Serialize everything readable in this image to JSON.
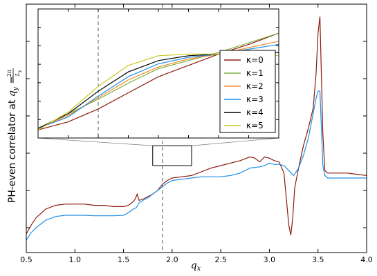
{
  "chart_data": [
    {
      "type": "line",
      "title": "",
      "xlabel": "q_x",
      "ylabel": "PH-even correlator at q_y = 2π/L_y",
      "ylabel_parts": {
        "text": "PH-even correlator at",
        "qy": "q",
        "qy_sub": "y",
        "eq": "=",
        "num": "2π",
        "den": "L",
        "den_sub": "y"
      },
      "xlim": [
        0.5,
        4.0
      ],
      "ylim": [
        0,
        1
      ],
      "xticks": [
        "0.5",
        "1.0",
        "1.5",
        "2.0",
        "2.5",
        "3.0",
        "3.5",
        "4.0"
      ],
      "xtick_values": [
        0.5,
        1.0,
        1.5,
        2.0,
        2.5,
        3.0,
        3.5,
        4.0
      ],
      "ytick_values": [
        0.1,
        0.25,
        0.4,
        0.55,
        0.7,
        0.85
      ],
      "vline_x": 1.9,
      "zoom_box": {
        "x": [
          1.8,
          2.2
        ],
        "y": [
          0.35,
          0.43
        ]
      },
      "series": [
        {
          "name": "κ=0",
          "color": "#8b1a0a",
          "x": [
            0.5,
            0.55,
            0.6,
            0.7,
            0.8,
            0.9,
            1.0,
            1.1,
            1.2,
            1.3,
            1.4,
            1.5,
            1.55,
            1.6,
            1.62,
            1.64,
            1.66,
            1.7,
            1.75,
            1.8,
            1.85,
            1.9,
            1.95,
            2.0,
            2.1,
            2.2,
            2.3,
            2.4,
            2.5,
            2.6,
            2.7,
            2.8,
            2.85,
            2.9,
            2.95,
            3.0,
            3.05,
            3.1,
            3.15,
            3.2,
            3.22,
            3.24,
            3.26,
            3.3,
            3.35,
            3.4,
            3.45,
            3.48,
            3.5,
            3.52,
            3.55,
            3.57,
            3.6,
            3.7,
            3.8,
            3.9,
            4.0
          ],
          "values": [
            0.075,
            0.11,
            0.14,
            0.175,
            0.19,
            0.195,
            0.195,
            0.195,
            0.19,
            0.19,
            0.185,
            0.185,
            0.19,
            0.205,
            0.215,
            0.235,
            0.21,
            0.215,
            0.225,
            0.235,
            0.25,
            0.275,
            0.29,
            0.3,
            0.305,
            0.31,
            0.325,
            0.34,
            0.35,
            0.36,
            0.37,
            0.385,
            0.38,
            0.365,
            0.385,
            0.38,
            0.37,
            0.365,
            0.32,
            0.11,
            0.07,
            0.14,
            0.26,
            0.34,
            0.43,
            0.5,
            0.58,
            0.72,
            0.88,
            0.95,
            0.48,
            0.33,
            0.32,
            0.32,
            0.32,
            0.315,
            0.31
          ]
        },
        {
          "name": "κ=3",
          "color": "#1e8fe8",
          "x": [
            0.5,
            0.55,
            0.6,
            0.7,
            0.8,
            0.9,
            1.0,
            1.1,
            1.2,
            1.3,
            1.4,
            1.5,
            1.55,
            1.6,
            1.63,
            1.66,
            1.7,
            1.75,
            1.8,
            1.85,
            1.9,
            1.95,
            2.0,
            2.1,
            2.2,
            2.3,
            2.4,
            2.5,
            2.6,
            2.7,
            2.8,
            2.9,
            2.95,
            3.0,
            3.05,
            3.1,
            3.15,
            3.2,
            3.25,
            3.3,
            3.35,
            3.4,
            3.45,
            3.48,
            3.5,
            3.52,
            3.55,
            3.57,
            3.6,
            3.7,
            3.8,
            3.9,
            4.0
          ],
          "values": [
            0.05,
            0.08,
            0.1,
            0.13,
            0.145,
            0.15,
            0.15,
            0.15,
            0.148,
            0.148,
            0.148,
            0.15,
            0.16,
            0.175,
            0.18,
            0.2,
            0.21,
            0.22,
            0.235,
            0.25,
            0.265,
            0.28,
            0.29,
            0.295,
            0.3,
            0.305,
            0.305,
            0.305,
            0.31,
            0.32,
            0.34,
            0.345,
            0.35,
            0.36,
            0.355,
            0.355,
            0.35,
            0.33,
            0.31,
            0.34,
            0.39,
            0.46,
            0.56,
            0.62,
            0.65,
            0.65,
            0.35,
            0.31,
            0.3,
            0.3,
            0.3,
            0.3,
            0.3
          ]
        }
      ],
      "legend_position": "right"
    },
    {
      "type": "line",
      "title": "",
      "xlabel": "",
      "ylabel": "",
      "xlim": [
        1.8,
        2.2
      ],
      "ylim": [
        0.35,
        0.43
      ],
      "vline_x": 1.9,
      "legend_position": "lower-right",
      "series": [
        {
          "name": "κ=0",
          "color": "#8b1a0a",
          "x": [
            1.8,
            1.85,
            1.9,
            1.95,
            2.0,
            2.05,
            2.1,
            2.15,
            2.2
          ],
          "values": [
            0.355,
            0.36,
            0.368,
            0.378,
            0.388,
            0.395,
            0.402,
            0.408,
            0.415
          ]
        },
        {
          "name": "κ=1",
          "color": "#7fb040",
          "x": [
            1.8,
            1.85,
            1.9,
            1.95,
            2.0,
            2.05,
            2.1,
            2.15,
            2.2
          ],
          "values": [
            0.356,
            0.365,
            0.374,
            0.384,
            0.393,
            0.398,
            0.403,
            0.409,
            0.415
          ]
        },
        {
          "name": "κ=2",
          "color": "#f28c28",
          "x": [
            1.8,
            1.85,
            1.9,
            1.95,
            2.0,
            2.05,
            2.1,
            2.15,
            2.2
          ],
          "values": [
            0.356,
            0.364,
            0.375,
            0.386,
            0.394,
            0.399,
            0.402,
            0.406,
            0.41
          ]
        },
        {
          "name": "κ=3",
          "color": "#1e8fe8",
          "x": [
            1.8,
            1.85,
            1.9,
            1.95,
            2.0,
            2.05,
            2.1,
            2.15,
            2.2
          ],
          "values": [
            0.356,
            0.363,
            0.376,
            0.388,
            0.396,
            0.4,
            0.402,
            0.405,
            0.408
          ]
        },
        {
          "name": "κ=4",
          "color": "#000000",
          "x": [
            1.8,
            1.85,
            1.9,
            1.95,
            2.0,
            2.05,
            2.1,
            2.15,
            2.2
          ],
          "values": [
            0.356,
            0.365,
            0.379,
            0.391,
            0.398,
            0.401,
            0.402,
            0.403,
            0.403
          ]
        },
        {
          "name": "κ=5",
          "color": "#c8c81e",
          "x": [
            1.8,
            1.85,
            1.9,
            1.95,
            2.0,
            2.05,
            2.1,
            2.15,
            2.2
          ],
          "values": [
            0.355,
            0.366,
            0.382,
            0.395,
            0.401,
            0.402,
            0.402,
            0.402,
            0.401
          ]
        }
      ]
    }
  ]
}
